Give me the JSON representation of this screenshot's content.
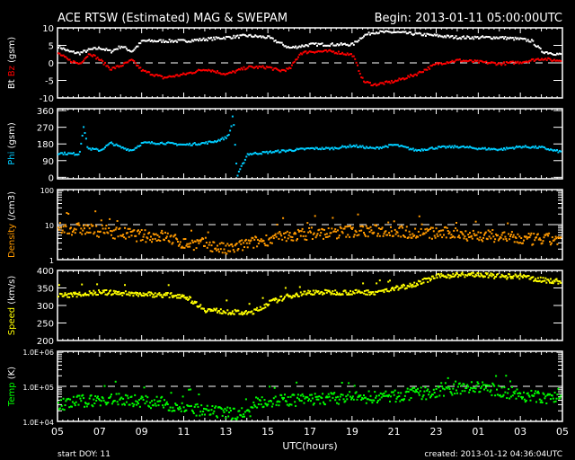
{
  "chart_data": {
    "type": "scatter",
    "title": "ACE RTSW (Estimated) MAG & SWEPAM",
    "begin": "Begin: 2013-01-11 05:00:00UTC",
    "xlabel": "UTC(hours)",
    "xticks": [
      "05",
      "07",
      "09",
      "11",
      "13",
      "15",
      "17",
      "19",
      "21",
      "23",
      "01",
      "03",
      "05"
    ],
    "xlim_hours": [
      0,
      24
    ],
    "footer_left": "start DOY:  11",
    "footer_right": "created: 2013-01-12 04:36:04UTC",
    "panels": [
      {
        "id": "mag",
        "ylabel_parts": [
          "Bt ",
          "Bz",
          " (gsm)"
        ],
        "ylabel_colors": [
          "#ffffff",
          "#ff0000",
          "#ffffff"
        ],
        "scale": "linear",
        "ylim": [
          -10,
          10
        ],
        "yticks": [
          "10",
          "5",
          "0",
          "-5",
          "-10"
        ],
        "ytick_values": [
          10,
          5,
          0,
          -5,
          -10
        ],
        "dashed_line": 0,
        "series": [
          {
            "name": "Bt",
            "color": "#ffffff",
            "x": [
              0,
              0.5,
              1,
              1.5,
              2,
              2.5,
              3,
              3.5,
              4,
              5,
              6,
              7,
              8,
              9,
              10,
              10.5,
              11,
              12,
              13,
              14,
              14.5,
              15,
              16,
              17,
              18,
              19,
              20,
              21,
              22,
              22.5,
              23,
              23.5,
              24
            ],
            "y": [
              5,
              3.5,
              3,
              4,
              4.5,
              3.5,
              5,
              3.5,
              6.5,
              6.5,
              6.5,
              7,
              7.5,
              8,
              7.5,
              6,
              4.5,
              5.5,
              5.5,
              5.5,
              8,
              9,
              9,
              8.5,
              8,
              7.5,
              7.5,
              7.5,
              7,
              6.5,
              3.5,
              3,
              2.5
            ]
          },
          {
            "name": "Bz",
            "color": "#ff0000",
            "x": [
              0,
              0.5,
              1,
              1.5,
              2,
              2.5,
              3,
              3.5,
              4,
              5,
              6,
              7,
              8,
              9,
              10,
              10.5,
              11,
              11.5,
              12,
              13,
              14,
              14.5,
              15,
              16,
              17,
              18,
              19,
              20,
              21,
              22,
              23,
              23.5,
              24
            ],
            "y": [
              3,
              1,
              0,
              3,
              1,
              -1.5,
              -0.5,
              1,
              -2,
              -4,
              -3,
              -1.5,
              -3,
              -1,
              -1,
              -2,
              -1.5,
              3,
              3.5,
              3.5,
              2.5,
              -5,
              -6,
              -5,
              -3,
              0,
              1,
              0.5,
              0,
              0.5,
              1.5,
              1,
              1
            ]
          }
        ]
      },
      {
        "id": "phi",
        "ylabel_parts": [
          "Phi",
          " (gsm)"
        ],
        "ylabel_colors": [
          "#00ccff",
          "#ffffff"
        ],
        "scale": "linear",
        "ylim": [
          -8,
          370
        ],
        "yticks": [
          "360",
          "270",
          "180",
          "90",
          "0"
        ],
        "ytick_values": [
          360,
          270,
          180,
          90,
          0
        ],
        "series": [
          {
            "name": "Phi",
            "color": "#00ccff",
            "x": [
              0,
              1,
              1.2,
              1.4,
              2,
              2.5,
              3,
              3.5,
              4,
              5,
              6,
              7,
              7.5,
              8,
              8.2,
              8.3,
              8.5,
              8.7,
              9,
              10,
              11,
              12,
              13,
              14,
              15,
              16,
              17,
              18,
              19,
              20,
              21,
              22,
              23,
              23.5,
              24
            ],
            "y": [
              135,
              130,
              280,
              160,
              150,
              190,
              165,
              150,
              190,
              190,
              180,
              190,
              200,
              220,
              260,
              355,
              10,
              60,
              130,
              140,
              150,
              160,
              160,
              175,
              160,
              180,
              150,
              165,
              170,
              160,
              155,
              170,
              165,
              150,
              140
            ]
          }
        ]
      },
      {
        "id": "density",
        "ylabel_parts": [
          "Density",
          " (/cm3)"
        ],
        "ylabel_colors": [
          "#ff9900",
          "#ffffff"
        ],
        "scale": "log",
        "ylim": [
          1,
          100
        ],
        "yticks": [
          "100",
          "10",
          "1"
        ],
        "ytick_values": [
          100,
          10,
          1
        ],
        "dashed_line": 10,
        "series": [
          {
            "name": "Density",
            "color": "#ff9900",
            "x": [
              0,
              1,
              2,
              3,
              4,
              5,
              6,
              7,
              8,
              9,
              10,
              11,
              12,
              13,
              14,
              15,
              16,
              17,
              18,
              19,
              20,
              21,
              22,
              23,
              24
            ],
            "y": [
              8,
              8,
              7,
              6,
              5,
              5,
              3,
              3,
              2,
              3,
              4,
              5,
              6,
              6,
              7,
              7,
              7,
              6,
              6,
              6,
              5,
              5,
              4,
              4,
              4
            ]
          }
        ]
      },
      {
        "id": "speed",
        "ylabel_parts": [
          "Speed",
          " (km/s)"
        ],
        "ylabel_colors": [
          "#ffff00",
          "#ffffff"
        ],
        "scale": "linear",
        "ylim": [
          200,
          400
        ],
        "yticks": [
          "400",
          "350",
          "300",
          "250",
          "200"
        ],
        "ytick_values": [
          400,
          350,
          300,
          250,
          200
        ],
        "series": [
          {
            "name": "Speed",
            "color": "#ffff00",
            "x": [
              0,
              2,
              4,
              6,
              7,
              8,
              9,
              9.5,
              10,
              11,
              12,
              14,
              15,
              16,
              17,
              18,
              19,
              20,
              21,
              22,
              23,
              24
            ],
            "y": [
              330,
              340,
              335,
              330,
              290,
              285,
              280,
              290,
              310,
              330,
              340,
              340,
              340,
              350,
              365,
              385,
              390,
              390,
              385,
              385,
              375,
              370
            ]
          }
        ]
      },
      {
        "id": "temp",
        "ylabel_parts": [
          "Temp",
          " (K)"
        ],
        "ylabel_colors": [
          "#00ff00",
          "#ffffff"
        ],
        "scale": "log",
        "ylim": [
          10000,
          1000000
        ],
        "yticks": [
          "1.0E+06",
          "1.0E+05",
          "1.0E+04"
        ],
        "ytick_values": [
          1000000,
          100000,
          10000
        ],
        "dashed_line": 100000,
        "series": [
          {
            "name": "Temp",
            "color": "#00ff00",
            "x": [
              0,
              1,
              3,
              4,
              5,
              6,
              7,
              8,
              9,
              9.5,
              10,
              12,
              14,
              16,
              17,
              18,
              19,
              20,
              21,
              22,
              23,
              24
            ],
            "y": [
              30000,
              40000,
              45000,
              40000,
              35000,
              25000,
              20000,
              18000,
              18000,
              40000,
              40000,
              45000,
              50000,
              55000,
              65000,
              70000,
              90000,
              100000,
              80000,
              60000,
              50000,
              50000
            ]
          }
        ]
      }
    ]
  }
}
